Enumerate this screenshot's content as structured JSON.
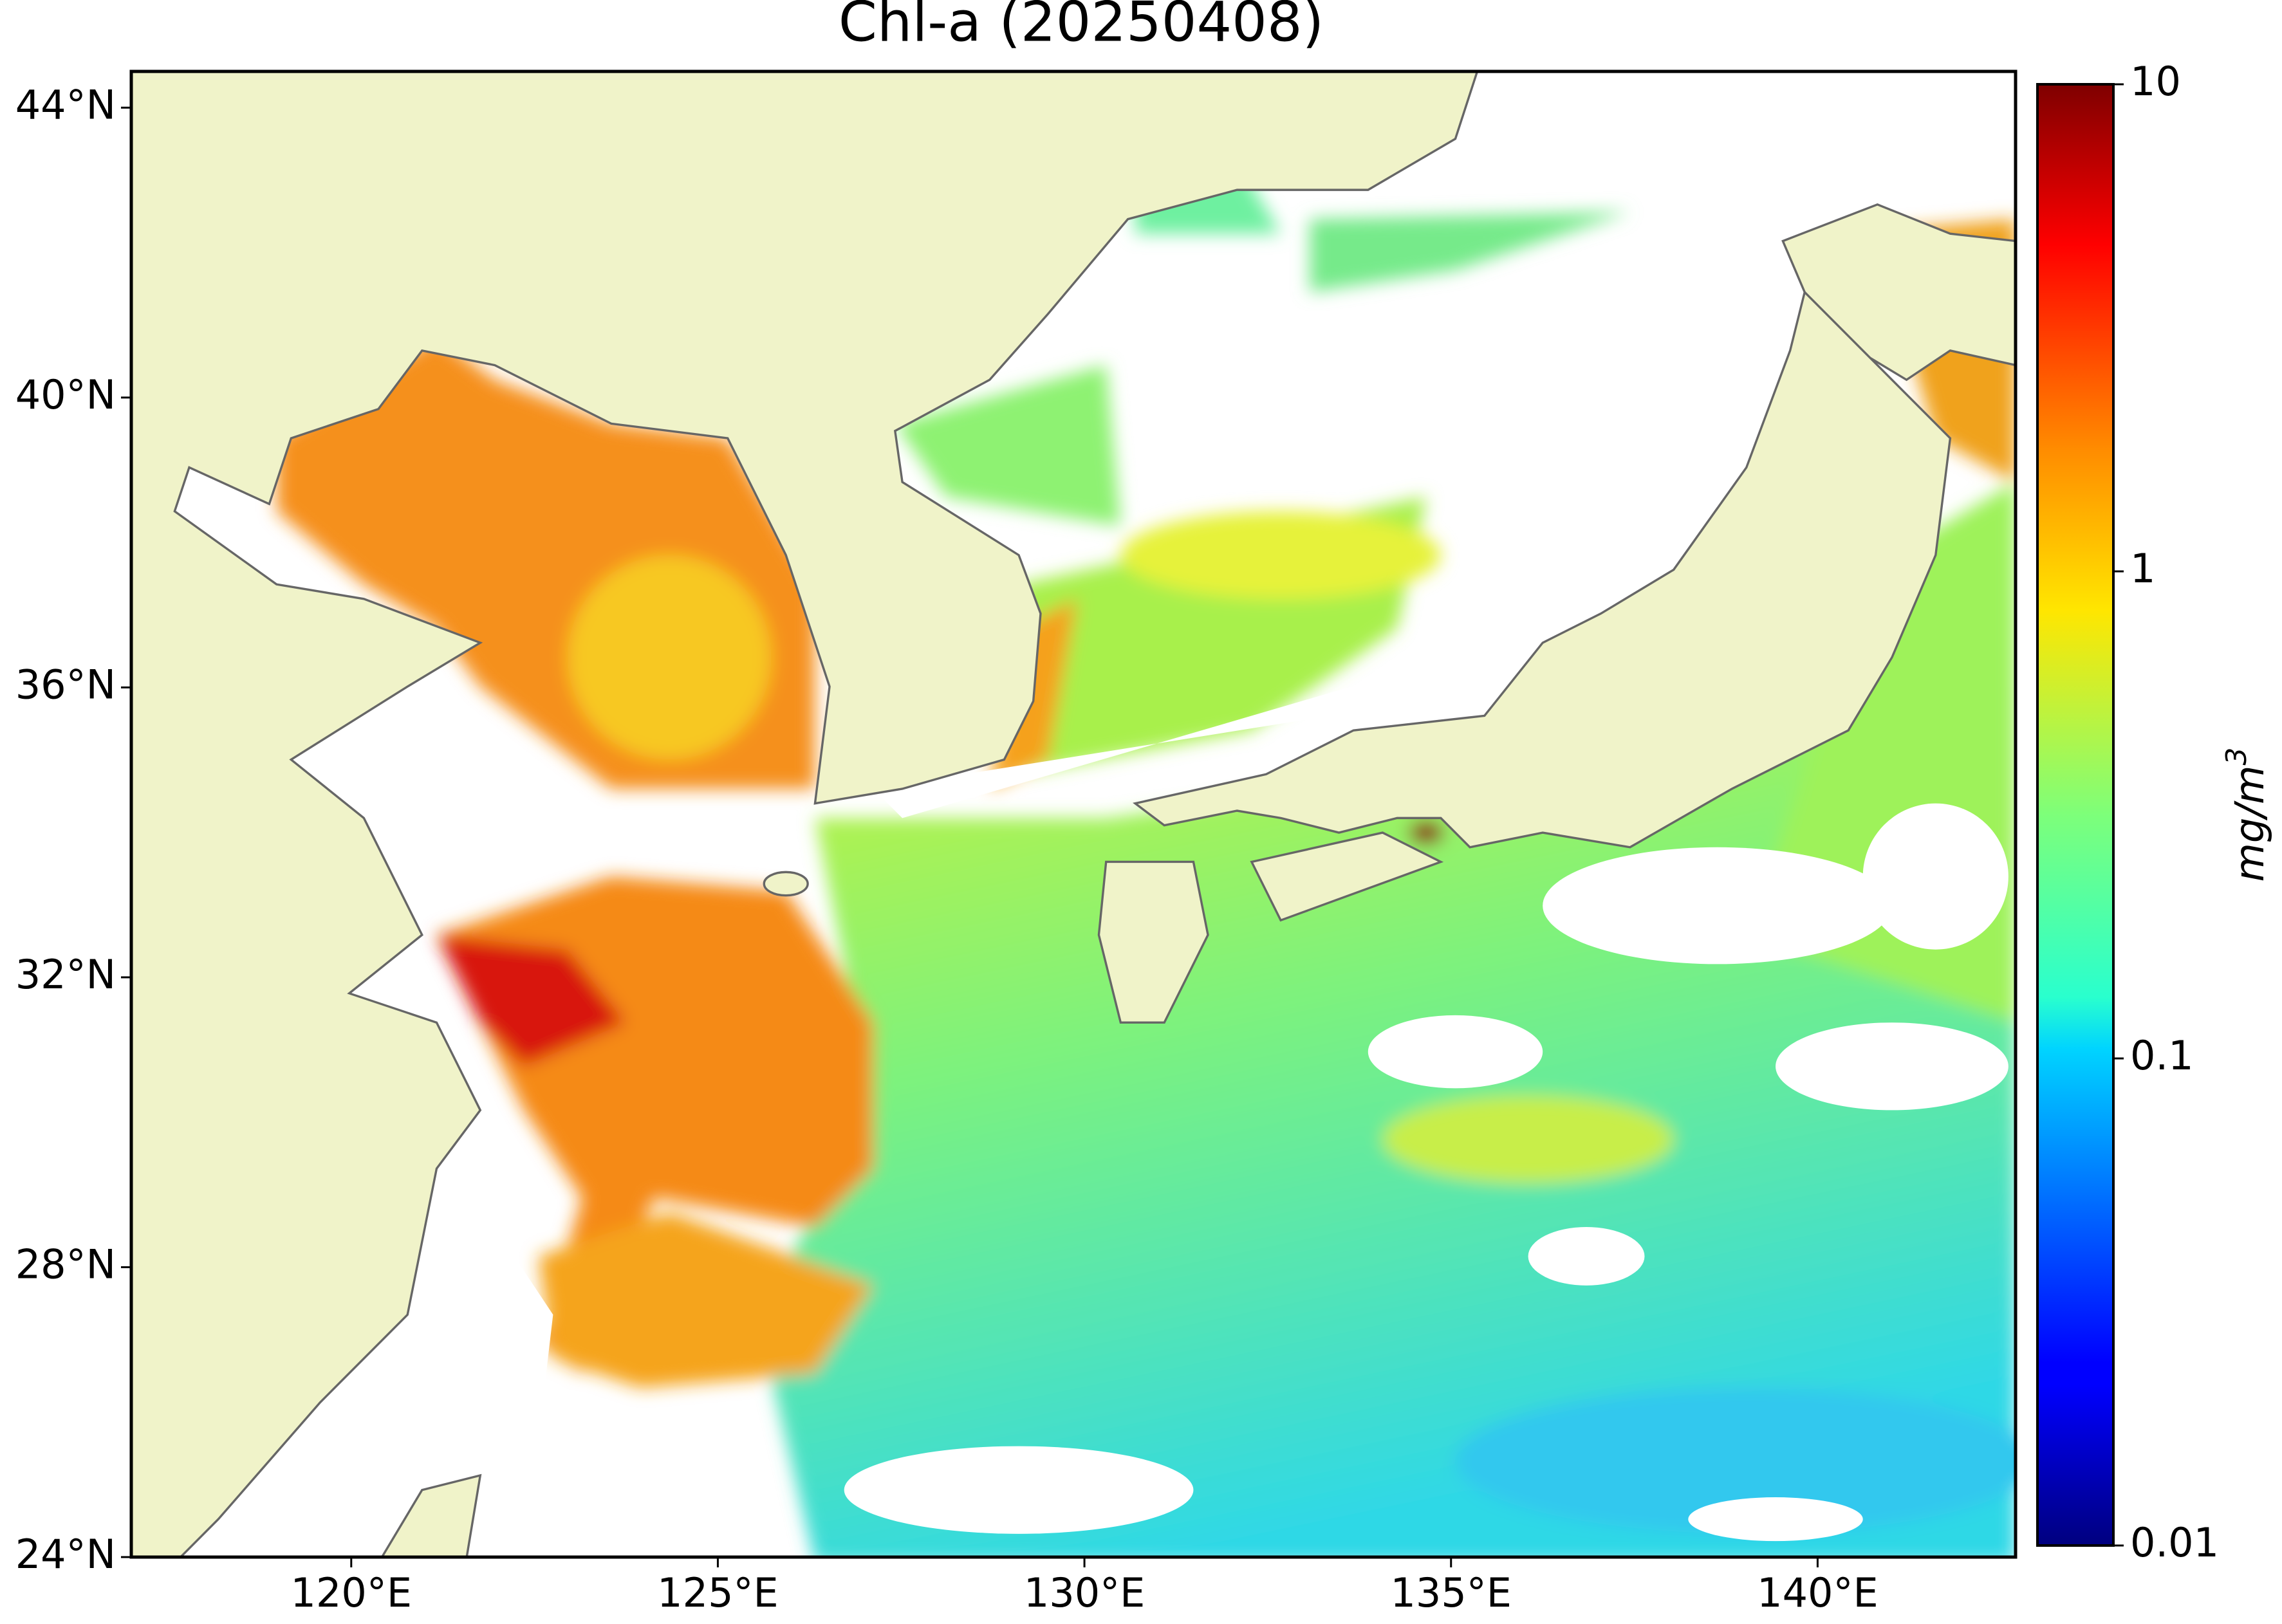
{
  "map": {
    "title": "Chl-a (20250408)",
    "xlim": [
      117,
      142.7
    ],
    "ylim": [
      24,
      44.5
    ],
    "lon_ticks": [
      {
        "value": 120,
        "label": "120°E"
      },
      {
        "value": 125,
        "label": "125°E"
      },
      {
        "value": 130,
        "label": "130°E"
      },
      {
        "value": 135,
        "label": "135°E"
      },
      {
        "value": 140,
        "label": "140°E"
      }
    ],
    "lat_ticks": [
      {
        "value": 24,
        "label": "24°N"
      },
      {
        "value": 28,
        "label": "28°N"
      },
      {
        "value": 32,
        "label": "32°N"
      },
      {
        "value": 36,
        "label": "36°N"
      },
      {
        "value": 40,
        "label": "40°N"
      },
      {
        "value": 44,
        "label": "44°N"
      }
    ],
    "colorbar": {
      "colormap": "jet",
      "log": true,
      "clim": [
        0.01,
        10
      ],
      "ticks": [
        0.01,
        0.1,
        1,
        10
      ],
      "label": {
        "text": "mg/m",
        "superscript": "3"
      }
    }
  }
}
